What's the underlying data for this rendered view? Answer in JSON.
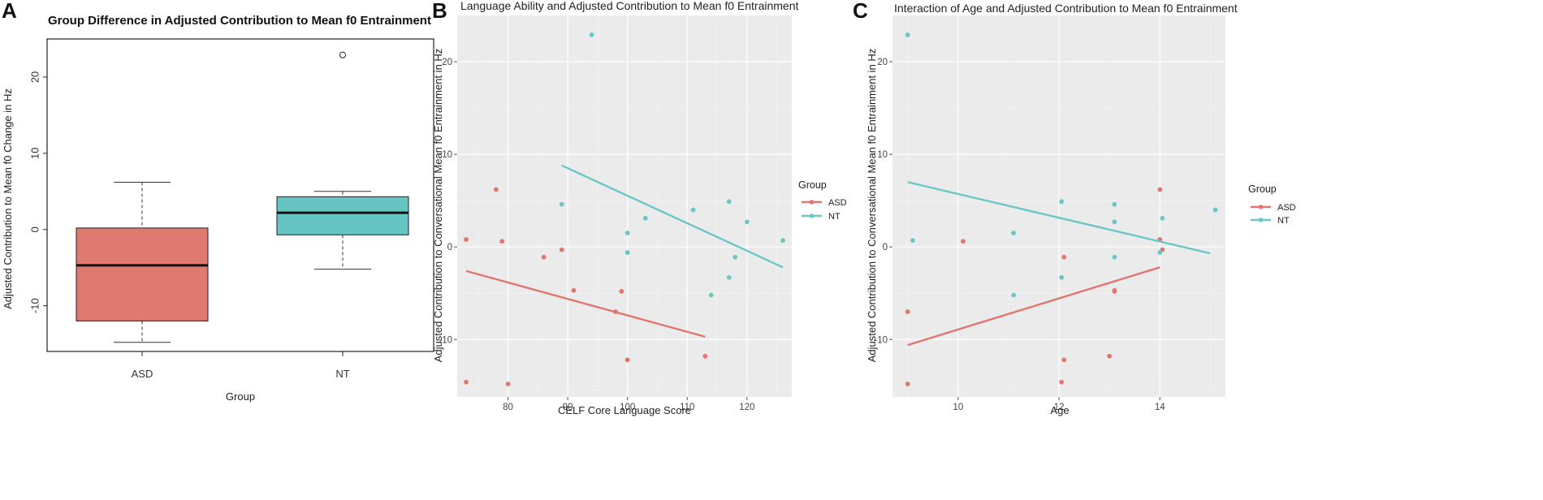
{
  "colors": {
    "asd": "#e0766e",
    "nt": "#6cc6c8",
    "asd_box": "#de7a6f",
    "nt_box": "#66c4c4",
    "panel_bg": "#ebebeb",
    "grid_major": "#ffffff"
  },
  "chart_data": [
    {
      "id": "A",
      "type": "box",
      "panel_letter": "A",
      "title": "Group Difference in Adjusted Contribution to Mean f0 Entrainment",
      "xlabel": "Group",
      "ylabel": "Adjusted Contribution to Mean f0 Change in Hz",
      "ylim": [
        -16,
        25
      ],
      "yticks": [
        -10,
        0,
        10,
        20
      ],
      "ytick_labels": [
        "-10",
        "0",
        "10",
        "20"
      ],
      "categories": [
        "ASD",
        "NT"
      ],
      "boxes": [
        {
          "name": "ASD",
          "whisker_low": -14.8,
          "q1": -12.0,
          "median": -4.7,
          "q3": 0.2,
          "whisker_high": 6.2,
          "outliers": []
        },
        {
          "name": "NT",
          "whisker_low": -5.2,
          "q1": -0.7,
          "median": 2.2,
          "q3": 4.3,
          "whisker_high": 5.0,
          "outliers": [
            22.9
          ]
        }
      ]
    },
    {
      "id": "B",
      "type": "scatter",
      "panel_letter": "B",
      "title": "Language Ability and Adjusted Contribution to Mean f0 Entrainment",
      "xlabel": "CELF Core Language Score",
      "ylabel": "Adjusted Contribution to Conversational Mean f0 Entrainment in Hz",
      "xlim": [
        71.5,
        127.5
      ],
      "ylim": [
        -16.2,
        25
      ],
      "xticks": [
        80,
        90,
        100,
        110,
        120
      ],
      "xtick_labels": [
        "80",
        "90",
        "100",
        "110",
        "120"
      ],
      "yticks": [
        -10,
        0,
        10,
        20
      ],
      "ytick_labels": [
        "-10",
        "0",
        "10",
        "20"
      ],
      "legend": {
        "title": "Group",
        "entries": [
          "ASD",
          "NT"
        ]
      },
      "series": [
        {
          "name": "ASD",
          "points": [
            [
              73,
              0.8
            ],
            [
              73,
              -14.6
            ],
            [
              78,
              6.2
            ],
            [
              79,
              0.6
            ],
            [
              80,
              -14.8
            ],
            [
              86,
              -1.1
            ],
            [
              89,
              -0.3
            ],
            [
              91,
              -4.7
            ],
            [
              98,
              -7.0
            ],
            [
              99,
              -4.8
            ],
            [
              100,
              -12.2
            ],
            [
              113,
              -11.8
            ]
          ],
          "fit": [
            [
              73,
              -2.6
            ],
            [
              113,
              -9.7
            ]
          ]
        },
        {
          "name": "NT",
          "points": [
            [
              89,
              4.6
            ],
            [
              94,
              22.9
            ],
            [
              100,
              1.5
            ],
            [
              100,
              -0.6
            ],
            [
              103,
              3.1
            ],
            [
              111,
              4.0
            ],
            [
              114,
              -5.2
            ],
            [
              117,
              4.9
            ],
            [
              117,
              -3.3
            ],
            [
              118,
              -1.1
            ],
            [
              120,
              2.7
            ],
            [
              126,
              0.7
            ]
          ],
          "fit": [
            [
              89,
              8.8
            ],
            [
              126,
              -2.2
            ]
          ]
        }
      ]
    },
    {
      "id": "C",
      "type": "scatter",
      "panel_letter": "C",
      "title": "Interaction of Age and Adjusted Contribution to Mean f0 Entrainment",
      "xlabel": "Age",
      "ylabel": "Adjusted Contribution to Conversational Mean f0 Entrainment in Hz",
      "xlim": [
        8.7,
        15.3
      ],
      "ylim": [
        -16.2,
        25
      ],
      "xticks": [
        10,
        12,
        14
      ],
      "xtick_labels": [
        "10",
        "12",
        "14"
      ],
      "yticks": [
        -10,
        0,
        10,
        20
      ],
      "ytick_labels": [
        "-10",
        "0",
        "10",
        "20"
      ],
      "legend": {
        "title": "Group",
        "entries": [
          "ASD",
          "NT"
        ]
      },
      "series": [
        {
          "name": "ASD",
          "points": [
            [
              9,
              -7.0
            ],
            [
              9,
              -14.8
            ],
            [
              10.1,
              0.6
            ],
            [
              12.05,
              -14.6
            ],
            [
              12.1,
              -1.1
            ],
            [
              12.1,
              -12.2
            ],
            [
              13,
              -11.8
            ],
            [
              13.1,
              -4.7
            ],
            [
              13.1,
              -4.8
            ],
            [
              14,
              6.2
            ],
            [
              14,
              0.8
            ],
            [
              14.05,
              -0.3
            ]
          ],
          "fit": [
            [
              9,
              -10.6
            ],
            [
              14,
              -2.2
            ]
          ]
        },
        {
          "name": "NT",
          "points": [
            [
              9,
              22.9
            ],
            [
              9.1,
              0.7
            ],
            [
              11.1,
              1.5
            ],
            [
              11.1,
              -5.2
            ],
            [
              12.05,
              4.9
            ],
            [
              12.05,
              -3.3
            ],
            [
              13.1,
              4.6
            ],
            [
              13.1,
              2.7
            ],
            [
              13.1,
              -1.1
            ],
            [
              14,
              -0.6
            ],
            [
              14.05,
              3.1
            ],
            [
              15.1,
              4.0
            ]
          ],
          "fit": [
            [
              9,
              7.0
            ],
            [
              15,
              -0.7
            ]
          ]
        }
      ]
    }
  ]
}
